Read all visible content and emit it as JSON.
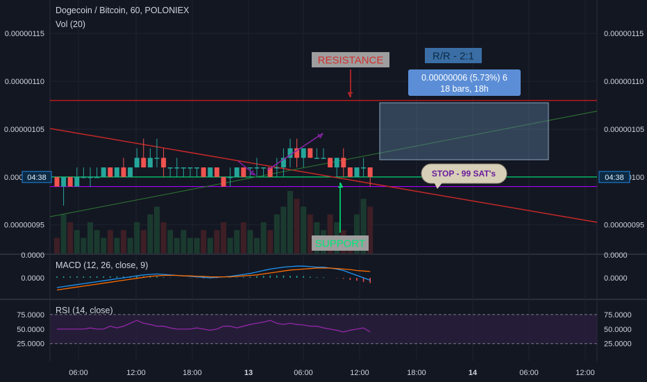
{
  "header": {
    "symbol_line": "Dogecoin / Bitcoin, 60, POLONIEX",
    "vol_label": "Vol (20)"
  },
  "colors": {
    "background": "#131722",
    "grid": "#1f2330",
    "up": "#26a69a",
    "down": "#ef5350",
    "support_line": "#4caf50",
    "stop_line": "#9c27b0",
    "resistance_line": "#b71c1c",
    "trend_down": "#b71c1c",
    "trend_up": "#2e7d32",
    "macd": "#2196f3",
    "signal": "#ff6d00",
    "rsi": "#ab47bc",
    "rsi_band": "#2a1f3d",
    "price_tag": "#1e3a5f"
  },
  "price_axis": {
    "ticks": [
      "0.00000115",
      "0.00000110",
      "0.00000105",
      "0.00000100",
      "0.00000095"
    ],
    "current_time_label": "04:38"
  },
  "macd_panel": {
    "label": "MACD (12, 26, close, 9)",
    "ticks": [
      "0.0000",
      "0.0000"
    ]
  },
  "rsi_panel": {
    "label": "RSI (14, close)",
    "ticks": [
      "75.0000",
      "50.0000",
      "25.0000"
    ]
  },
  "time_axis": {
    "labels": [
      "06:00",
      "12:00",
      "18:00",
      "13",
      "06:00",
      "12:00",
      "18:00",
      "14",
      "06:00",
      "12:00"
    ]
  },
  "annotations": {
    "resistance": "RESISTANCE",
    "support": "SUPPORT",
    "rr": "R/R - 2:1",
    "measure_line1": "0.00000006 (5.73%) 6",
    "measure_line2": "18 bars, 18h",
    "stop": "STOP - 99 SAT's"
  },
  "chart_data": {
    "type": "candlestick",
    "timeframe": "60",
    "levels": {
      "resistance": 1.08e-06,
      "support": 1e-06,
      "stop": 9.9e-07
    },
    "candles": [
      {
        "o": 1e-06,
        "h": 1e-06,
        "l": 9.9e-07,
        "c": 9.9e-07
      },
      {
        "o": 9.9e-07,
        "h": 1e-06,
        "l": 9.7e-07,
        "c": 1e-06
      },
      {
        "o": 1e-06,
        "h": 1e-06,
        "l": 9.9e-07,
        "c": 9.9e-07
      },
      {
        "o": 9.9e-07,
        "h": 1.01e-06,
        "l": 9.9e-07,
        "c": 1e-06
      },
      {
        "o": 1e-06,
        "h": 1.01e-06,
        "l": 1e-06,
        "c": 1e-06
      },
      {
        "o": 1e-06,
        "h": 1.01e-06,
        "l": 9.9e-07,
        "c": 1e-06
      },
      {
        "o": 1e-06,
        "h": 1.01e-06,
        "l": 1e-06,
        "c": 1e-06
      },
      {
        "o": 1e-06,
        "h": 1.01e-06,
        "l": 1e-06,
        "c": 1.01e-06
      },
      {
        "o": 1.01e-06,
        "h": 1.01e-06,
        "l": 1e-06,
        "c": 1e-06
      },
      {
        "o": 1e-06,
        "h": 1.01e-06,
        "l": 1e-06,
        "c": 1.01e-06
      },
      {
        "o": 1.01e-06,
        "h": 1.02e-06,
        "l": 1e-06,
        "c": 1e-06
      },
      {
        "o": 1e-06,
        "h": 1.01e-06,
        "l": 1e-06,
        "c": 1.01e-06
      },
      {
        "o": 1.01e-06,
        "h": 1.03e-06,
        "l": 1.01e-06,
        "c": 1.02e-06
      },
      {
        "o": 1.02e-06,
        "h": 1.04e-06,
        "l": 1.01e-06,
        "c": 1.01e-06
      },
      {
        "o": 1.01e-06,
        "h": 1.03e-06,
        "l": 1.01e-06,
        "c": 1.02e-06
      },
      {
        "o": 1.02e-06,
        "h": 1.04e-06,
        "l": 1.01e-06,
        "c": 1.02e-06
      },
      {
        "o": 1.02e-06,
        "h": 1.03e-06,
        "l": 1e-06,
        "c": 1.01e-06
      },
      {
        "o": 1.01e-06,
        "h": 1.01e-06,
        "l": 1e-06,
        "c": 1.01e-06
      },
      {
        "o": 1.01e-06,
        "h": 1.02e-06,
        "l": 1e-06,
        "c": 1.01e-06
      },
      {
        "o": 1.01e-06,
        "h": 1.01e-06,
        "l": 1e-06,
        "c": 1.01e-06
      },
      {
        "o": 1.01e-06,
        "h": 1.01e-06,
        "l": 1e-06,
        "c": 1.01e-06
      },
      {
        "o": 1.01e-06,
        "h": 1.01e-06,
        "l": 1e-06,
        "c": 1.01e-06
      },
      {
        "o": 1.01e-06,
        "h": 1.01e-06,
        "l": 1e-06,
        "c": 1e-06
      },
      {
        "o": 1e-06,
        "h": 1.01e-06,
        "l": 1e-06,
        "c": 1.01e-06
      },
      {
        "o": 1.01e-06,
        "h": 1.01e-06,
        "l": 1e-06,
        "c": 1e-06
      },
      {
        "o": 1e-06,
        "h": 1e-06,
        "l": 9.9e-07,
        "c": 9.9e-07
      },
      {
        "o": 1e-06,
        "h": 1.01e-06,
        "l": 9.9e-07,
        "c": 1e-06
      },
      {
        "o": 1e-06,
        "h": 1.01e-06,
        "l": 1e-06,
        "c": 1.01e-06
      },
      {
        "o": 1.01e-06,
        "h": 1.01e-06,
        "l": 1e-06,
        "c": 1e-06
      },
      {
        "o": 1.01e-06,
        "h": 1.01e-06,
        "l": 1e-06,
        "c": 1.01e-06
      },
      {
        "o": 1.01e-06,
        "h": 1.02e-06,
        "l": 1e-06,
        "c": 1.01e-06
      },
      {
        "o": 1.01e-06,
        "h": 1.01e-06,
        "l": 1e-06,
        "c": 1.01e-06
      },
      {
        "o": 1.01e-06,
        "h": 1.01e-06,
        "l": 1e-06,
        "c": 1e-06
      },
      {
        "o": 1.01e-06,
        "h": 1.02e-06,
        "l": 1e-06,
        "c": 1.01e-06
      },
      {
        "o": 1.01e-06,
        "h": 1.03e-06,
        "l": 1e-06,
        "c": 1.02e-06
      },
      {
        "o": 1.02e-06,
        "h": 1.04e-06,
        "l": 1.01e-06,
        "c": 1.03e-06
      },
      {
        "o": 1.03e-06,
        "h": 1.04e-06,
        "l": 1.01e-06,
        "c": 1.02e-06
      },
      {
        "o": 1.02e-06,
        "h": 1.03e-06,
        "l": 1.01e-06,
        "c": 1.03e-06
      },
      {
        "o": 1.03e-06,
        "h": 1.03e-06,
        "l": 1.02e-06,
        "c": 1.02e-06
      },
      {
        "o": 1.02e-06,
        "h": 1.03e-06,
        "l": 1.02e-06,
        "c": 1.02e-06
      },
      {
        "o": 1.02e-06,
        "h": 1.03e-06,
        "l": 1.02e-06,
        "c": 1.02e-06
      },
      {
        "o": 1.02e-06,
        "h": 1.02e-06,
        "l": 1.01e-06,
        "c": 1.01e-06
      },
      {
        "o": 1.01e-06,
        "h": 1.02e-06,
        "l": 1e-06,
        "c": 1.02e-06
      },
      {
        "o": 1.02e-06,
        "h": 1.03e-06,
        "l": 1e-06,
        "c": 1.01e-06
      },
      {
        "o": 1.01e-06,
        "h": 1.01e-06,
        "l": 1e-06,
        "c": 1e-06
      },
      {
        "o": 1e-06,
        "h": 1.01e-06,
        "l": 1e-06,
        "c": 1.01e-06
      },
      {
        "o": 1.01e-06,
        "h": 1.02e-06,
        "l": 1e-06,
        "c": 1.01e-06
      },
      {
        "o": 1.01e-06,
        "h": 1.01e-06,
        "l": 9.9e-07,
        "c": 1e-06
      }
    ],
    "volume": [
      2,
      5,
      4,
      3,
      2,
      4,
      3,
      2,
      3,
      2,
      3,
      2,
      4,
      3,
      5,
      6,
      4,
      3,
      2,
      3,
      2,
      2,
      3,
      2,
      3,
      4,
      2,
      3,
      4,
      3,
      2,
      4,
      3,
      5,
      6,
      8,
      7,
      6,
      5,
      4,
      3,
      5,
      4,
      3,
      2,
      5,
      7,
      6
    ],
    "macd": [
      -0.2,
      -0.18,
      -0.16,
      -0.14,
      -0.12,
      -0.1,
      -0.08,
      -0.06,
      -0.04,
      -0.02,
      0,
      0.02,
      0.04,
      0.06,
      0.07,
      0.08,
      0.07,
      0.06,
      0.05,
      0.04,
      0.03,
      0.02,
      0.01,
      0,
      0.01,
      0.02,
      0.03,
      0.05,
      0.07,
      0.09,
      0.12,
      0.15,
      0.18,
      0.2,
      0.22,
      0.23,
      0.24,
      0.24,
      0.23,
      0.22,
      0.22,
      0.2,
      0.18,
      0.15,
      0.1,
      0.05,
      0.0,
      -0.05
    ],
    "signal": [
      -0.25,
      -0.23,
      -0.21,
      -0.19,
      -0.17,
      -0.15,
      -0.13,
      -0.11,
      -0.09,
      -0.07,
      -0.05,
      -0.03,
      -0.01,
      0.01,
      0.03,
      0.04,
      0.05,
      0.05,
      0.05,
      0.04,
      0.04,
      0.03,
      0.03,
      0.02,
      0.02,
      0.02,
      0.02,
      0.03,
      0.04,
      0.05,
      0.06,
      0.08,
      0.1,
      0.12,
      0.14,
      0.16,
      0.17,
      0.18,
      0.19,
      0.2,
      0.2,
      0.2,
      0.19,
      0.18,
      0.17,
      0.15,
      0.14,
      0.13
    ],
    "rsi": [
      50,
      50,
      50,
      50,
      50,
      52,
      50,
      50,
      55,
      52,
      55,
      60,
      65,
      60,
      58,
      55,
      55,
      52,
      50,
      50,
      50,
      52,
      50,
      48,
      50,
      55,
      55,
      52,
      55,
      58,
      60,
      62,
      65,
      60,
      58,
      60,
      58,
      57,
      55,
      55,
      52,
      50,
      48,
      45,
      48,
      50,
      52,
      45
    ]
  }
}
